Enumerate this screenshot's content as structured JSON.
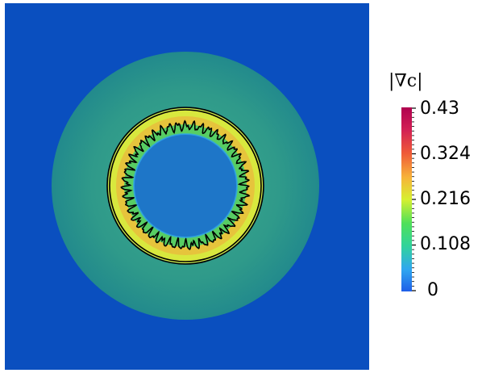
{
  "figure": {
    "field_name": "|∇c|",
    "colormap": [
      "#1f5fe8",
      "#2fa7f0",
      "#31d49a",
      "#4fe05a",
      "#d7f030",
      "#f7b33a",
      "#ef5b38",
      "#d21f55",
      "#b0004f"
    ],
    "colors": {
      "background": "#0a4fbf",
      "outer_halo": "#2fa18a",
      "inner_disk": "#1e76c8",
      "ring_core": "#d8e83e",
      "contour": "#000000"
    },
    "colorbar_ticks": [
      "0.43",
      "0.324",
      "0.216",
      "0.108",
      "0"
    ]
  }
}
